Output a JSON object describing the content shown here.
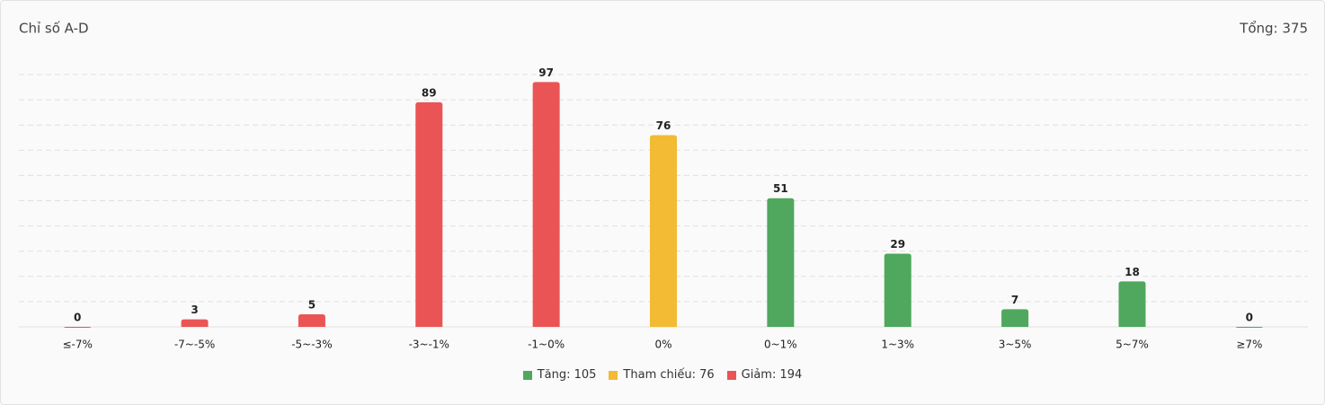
{
  "chart_data": {
    "type": "bar",
    "title": "Chỉ số A-D",
    "total_label": "Tổng: 375",
    "categories": [
      "≤-7%",
      "-7~-5%",
      "-5~-3%",
      "-3~-1%",
      "-1~0%",
      "0%",
      "0~1%",
      "1~3%",
      "3~5%",
      "5~7%",
      "≥7%"
    ],
    "series": [
      {
        "name": "Tăng: 105",
        "color": "#4fa85d",
        "values": [
          null,
          null,
          null,
          null,
          null,
          null,
          51,
          29,
          7,
          18,
          0
        ]
      },
      {
        "name": "Tham chiếu: 76",
        "color": "#f2bb33",
        "values": [
          null,
          null,
          null,
          null,
          null,
          76,
          null,
          null,
          null,
          null,
          null
        ]
      },
      {
        "name": "Giảm: 194",
        "color": "#eb5454",
        "values": [
          0,
          3,
          5,
          89,
          97,
          null,
          null,
          null,
          null,
          null,
          null
        ]
      }
    ],
    "ylim": [
      0,
      100
    ],
    "yticks": [
      0,
      10,
      20,
      30,
      40,
      50,
      60,
      70,
      80,
      90,
      100
    ],
    "grid": true,
    "legend": "bottom"
  }
}
